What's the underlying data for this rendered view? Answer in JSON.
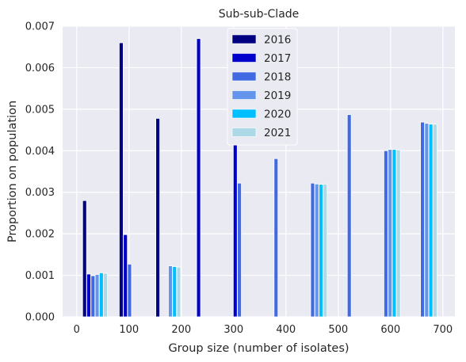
{
  "chart_data": {
    "type": "bar",
    "title": "Sub-sub-Clade",
    "xlabel": "Group size (number of isolates)",
    "ylabel": "Proportion on population",
    "xlim": [
      -27,
      723
    ],
    "ylim": [
      0,
      0.007
    ],
    "xticks": [
      0,
      100,
      200,
      300,
      400,
      500,
      600,
      700
    ],
    "yticks": [
      0.0,
      0.001,
      0.002,
      0.003,
      0.004,
      0.005,
      0.006,
      0.007
    ],
    "ytick_labels": [
      "0.000",
      "0.001",
      "0.002",
      "0.003",
      "0.004",
      "0.005",
      "0.006",
      "0.007"
    ],
    "bar_width": 7.5,
    "legend_position": "upper-center",
    "grid": true,
    "series": [
      {
        "name": "2016",
        "color": "#000080",
        "x": [
          15,
          85,
          155
        ],
        "values": [
          0.0028,
          0.0066,
          0.00478
        ]
      },
      {
        "name": "2017",
        "color": "#0000CD",
        "x": [
          23,
          93,
          233,
          303
        ],
        "values": [
          0.00103,
          0.00198,
          0.0067,
          0.00455
        ]
      },
      {
        "name": "2018",
        "color": "#4169E1",
        "x": [
          31,
          101,
          311,
          381,
          451,
          521,
          591,
          661
        ],
        "values": [
          0.00099,
          0.00127,
          0.00322,
          0.00381,
          0.00322,
          0.00487,
          0.004,
          0.00469
        ]
      },
      {
        "name": "2019",
        "color": "#6495ED",
        "x": [
          39,
          179,
          459,
          599,
          669
        ],
        "values": [
          0.00102,
          0.00123,
          0.0032,
          0.00403,
          0.00466
        ]
      },
      {
        "name": "2020",
        "color": "#00BFFF",
        "x": [
          47,
          187,
          467,
          607,
          677
        ],
        "values": [
          0.00106,
          0.00121,
          0.00319,
          0.00403,
          0.00464
        ]
      },
      {
        "name": "2021",
        "color": "#ADD8E6",
        "x": [
          55,
          195,
          475,
          615,
          685
        ],
        "values": [
          0.00105,
          0.0012,
          0.0032,
          0.00402,
          0.00464
        ]
      }
    ]
  }
}
